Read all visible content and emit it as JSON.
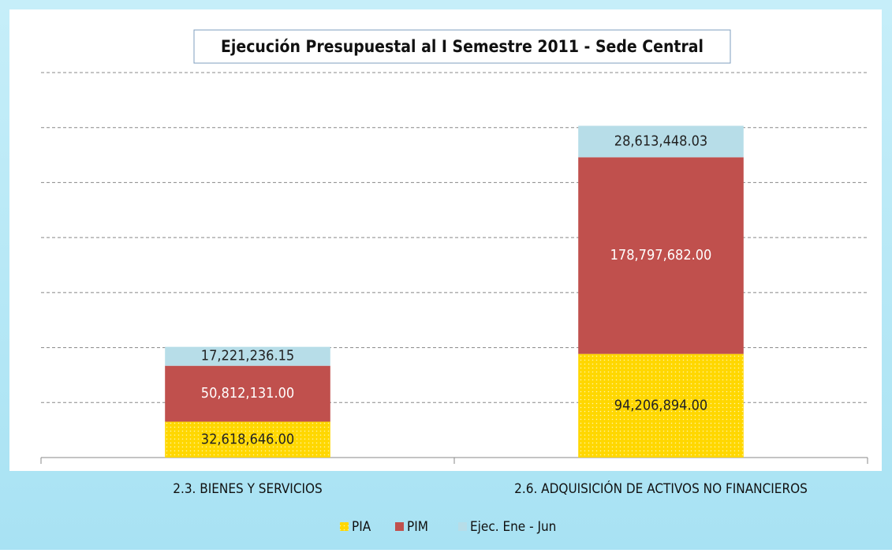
{
  "chart_data": {
    "type": "stacked_bar",
    "title": "Ejecución Presupuestal al I Semestre 2011 - Sede Central",
    "categories": [
      "2.3. BIENES Y SERVICIOS",
      "2.6. ADQUISICIÓN DE ACTIVOS NO FINANCIEROS"
    ],
    "series": [
      {
        "name": "PIA",
        "color": "#ffd700",
        "values": [
          32618646.0,
          94206894.0
        ],
        "value_labels": [
          "32,618,646.00",
          "94,206,894.00"
        ]
      },
      {
        "name": "PIM",
        "color": "#c0504d",
        "values": [
          50812131.0,
          178797682.0
        ],
        "value_labels": [
          "50,812,131.00",
          "178,797,682.00"
        ]
      },
      {
        "name": "Ejec. Ene - Jun",
        "color": "#b7dde8",
        "values": [
          17221236.15,
          28613448.03
        ],
        "value_labels": [
          "17,221,236.15",
          "28,613,448.03"
        ]
      }
    ],
    "ylim": [
      0,
      350000000
    ],
    "yticks": [
      0,
      50000000,
      100000000,
      150000000,
      200000000,
      250000000,
      300000000,
      350000000
    ],
    "grid": true,
    "legend": "bottom"
  }
}
